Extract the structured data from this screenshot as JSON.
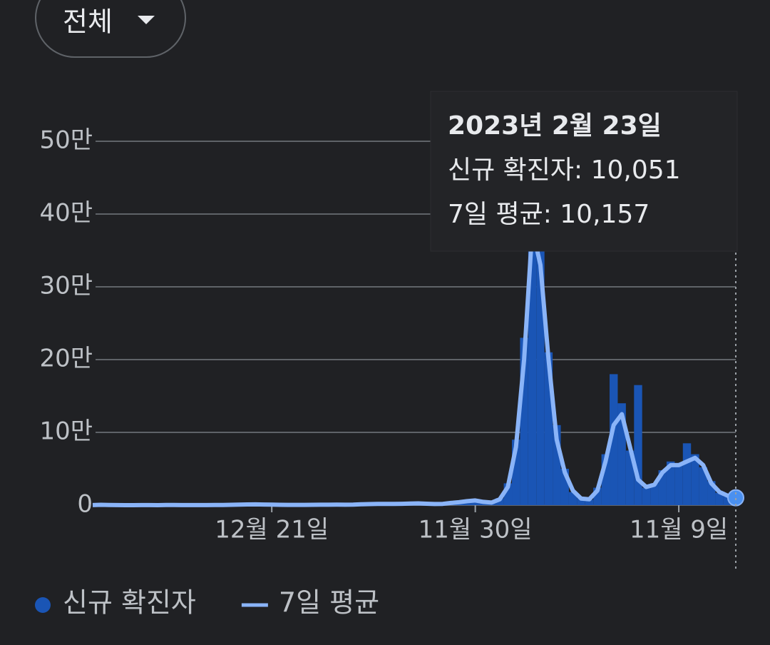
{
  "dropdown": {
    "label": "전체"
  },
  "chart_data": {
    "type": "combo",
    "categories": [
      null,
      null,
      null,
      null,
      null,
      null,
      null,
      null,
      null,
      null,
      null,
      null,
      null,
      null,
      null,
      null,
      null,
      null,
      null,
      null,
      null,
      null,
      "12월 21일",
      null,
      null,
      null,
      null,
      null,
      null,
      null,
      null,
      null,
      null,
      null,
      null,
      null,
      null,
      null,
      null,
      null,
      null,
      null,
      null,
      null,
      null,
      null,
      null,
      "11월 30일",
      null,
      null,
      null,
      null,
      null,
      null,
      null,
      null,
      null,
      null,
      null,
      null,
      null,
      null,
      null,
      null,
      null,
      null,
      null,
      null,
      null,
      null,
      null,
      null,
      "11월 9일",
      null,
      null,
      null,
      null,
      null,
      null,
      null
    ],
    "series": [
      {
        "name": "신규 확진자",
        "type": "bar",
        "color": "#1a55b5",
        "values": [
          90,
          600,
          130,
          70,
          35,
          45,
          60,
          45,
          35,
          280,
          230,
          110,
          105,
          85,
          110,
          170,
          330,
          560,
          850,
          1100,
          1000,
          850,
          600,
          430,
          390,
          440,
          410,
          500,
          580,
          620,
          700,
          580,
          750,
          1400,
          1600,
          1800,
          1900,
          1650,
          2100,
          2300,
          2700,
          1900,
          1500,
          2000,
          3300,
          4300,
          6000,
          7000,
          4300,
          3300,
          9500,
          30000,
          90000,
          230000,
          420000,
          350000,
          210000,
          110000,
          50000,
          18000,
          9500,
          7500,
          24000,
          70000,
          180000,
          140000,
          75000,
          165000,
          24000,
          30000,
          48000,
          60000,
          58000,
          85000,
          70000,
          52000,
          33000,
          17000,
          12000,
          10051
        ]
      },
      {
        "name": "7일 평균",
        "type": "line",
        "color": "#8ab4f8",
        "values": [
          100,
          500,
          150,
          80,
          40,
          40,
          50,
          50,
          40,
          200,
          250,
          120,
          100,
          90,
          100,
          150,
          300,
          500,
          800,
          1000,
          1050,
          900,
          650,
          450,
          400,
          420,
          430,
          480,
          550,
          600,
          650,
          600,
          700,
          1200,
          1500,
          1700,
          1800,
          1700,
          1900,
          2200,
          2500,
          2000,
          1600,
          1800,
          3000,
          4000,
          5500,
          6500,
          4500,
          3500,
          8000,
          25000,
          80000,
          200000,
          380000,
          330000,
          200000,
          90000,
          45000,
          20000,
          9000,
          8000,
          20000,
          60000,
          110000,
          125000,
          80000,
          35000,
          25000,
          28000,
          45000,
          55000,
          55000,
          60000,
          65000,
          55000,
          30000,
          18000,
          13000,
          10157
        ]
      }
    ],
    "ylim": [
      0,
      500000
    ],
    "yticks": [
      0,
      {
        "value": 100000,
        "label": "10만"
      },
      {
        "value": 200000,
        "label": "20만"
      },
      {
        "value": 300000,
        "label": "30만"
      },
      {
        "value": 400000,
        "label": "40만"
      },
      {
        "value": 500000,
        "label": "50만"
      }
    ],
    "grid": true,
    "tooltip": {
      "title": "2023년 2월 23일",
      "lines": [
        "신규 확진자: 10,051",
        "7일 평균: 10,157"
      ]
    }
  }
}
